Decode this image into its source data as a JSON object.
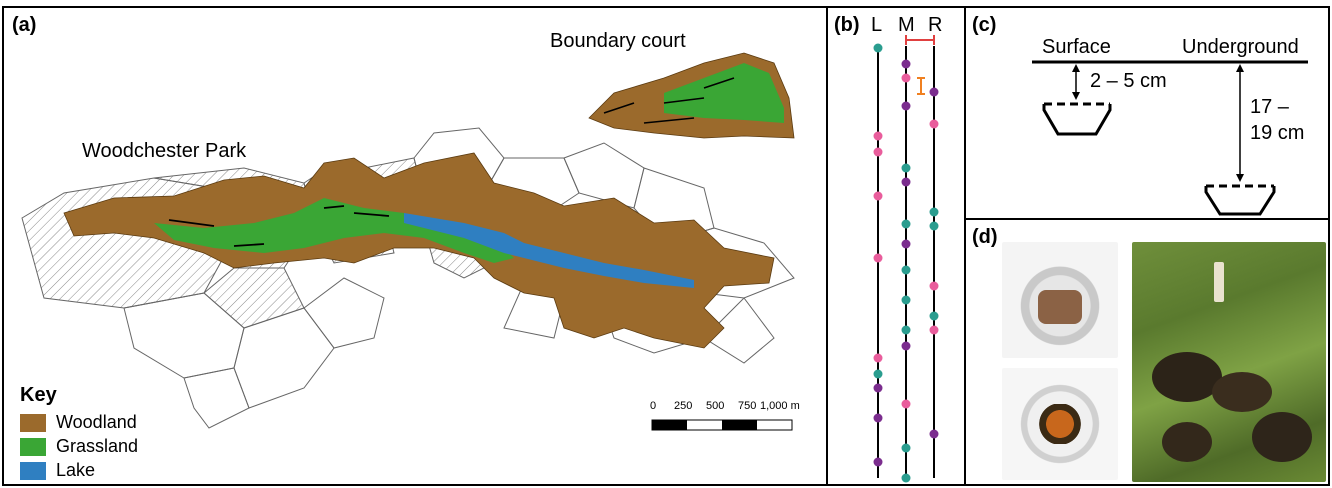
{
  "panel_a": {
    "label": "(a)",
    "park_name": "Woodchester Park",
    "court_name": "Boundary court",
    "key_title": "Key",
    "key": [
      {
        "label": "Woodland",
        "color": "#9b6a2c"
      },
      {
        "label": "Grassland",
        "color": "#3aa635"
      },
      {
        "label": "Lake",
        "color": "#2f7fc1"
      }
    ],
    "scale_ticks": [
      "0",
      "250",
      "500",
      "750",
      "1,000 m"
    ]
  },
  "panel_b": {
    "label": "(b)",
    "columns": [
      "L",
      "M",
      "R"
    ],
    "colors": {
      "teal": "#2a9d8f",
      "purple": "#7b2d8e",
      "pink": "#e95d9c",
      "range": "#e04040",
      "orange": "#f08020"
    }
  },
  "panel_c": {
    "label": "(c)",
    "surface": "Surface",
    "underground": "Underground",
    "depth_surface": "2 – 5 cm",
    "depth_under_1": "17 –",
    "depth_under_2": "19 cm"
  },
  "panel_d": {
    "label": "(d)"
  }
}
